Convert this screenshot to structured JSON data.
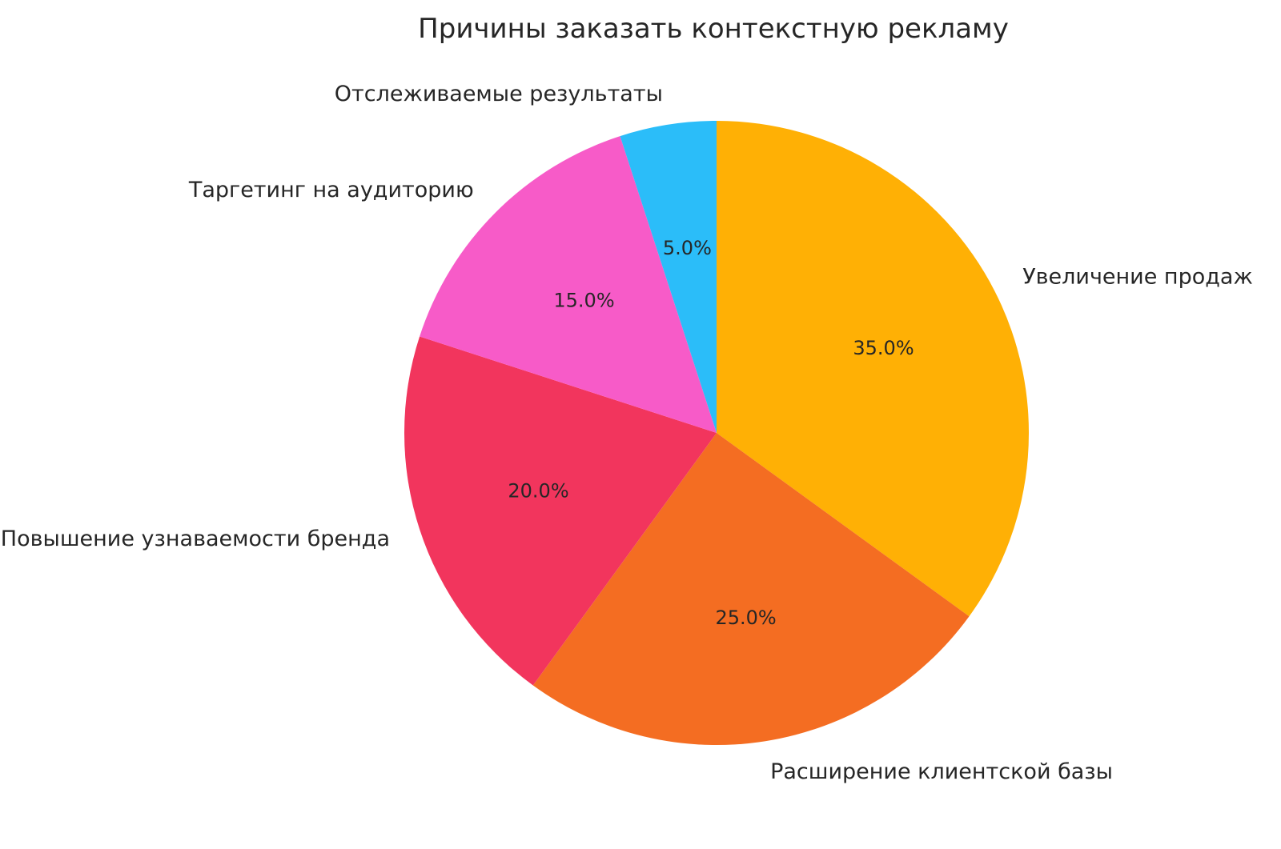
{
  "chart_data": {
    "type": "pie",
    "title": "Причины заказать контекстную рекламу",
    "background_color": "#FFFFFF",
    "text_color": "#262626",
    "start_angle_deg": 90,
    "direction": "clockwise",
    "label_distance": 1.1,
    "pct_distance": 0.6,
    "legend": "none",
    "slices": [
      {
        "label": "Увеличение продаж",
        "value": 35.0,
        "pct_label": "35.0%",
        "color": "#FFB005"
      },
      {
        "label": "Расширение клиентской базы",
        "value": 25.0,
        "pct_label": "25.0%",
        "color": "#F46D22"
      },
      {
        "label": "Повышение узнаваемости бренда",
        "value": 20.0,
        "pct_label": "20.0%",
        "color": "#F2355D"
      },
      {
        "label": "Таргетинг на аудиторию",
        "value": 15.0,
        "pct_label": "15.0%",
        "color": "#F75BC8"
      },
      {
        "label": "Отслеживаемые результаты",
        "value": 5.0,
        "pct_label": "5.0%",
        "color": "#2BBDF9"
      }
    ]
  }
}
